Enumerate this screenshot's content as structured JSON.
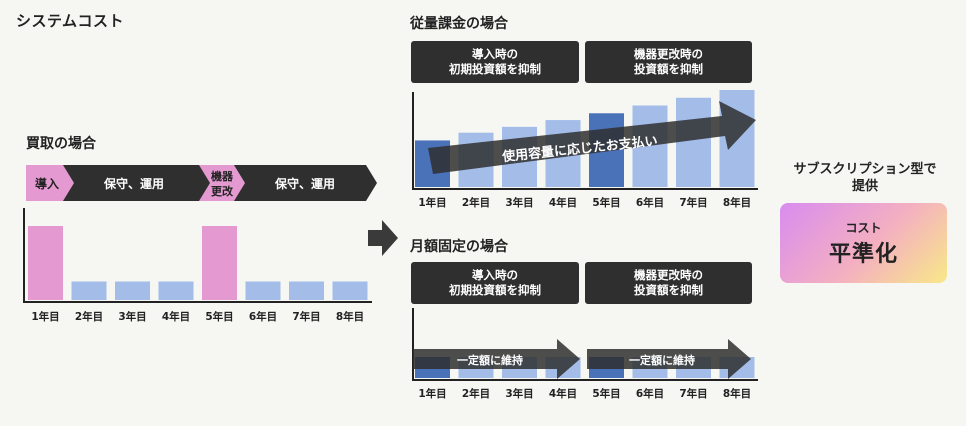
{
  "page_title": "システムコスト",
  "purchase": {
    "title": "買取の場合",
    "flow": [
      {
        "label": "導入",
        "type": "pink"
      },
      {
        "label": "保守、運用",
        "type": "dark"
      },
      {
        "label": "機器\n更改",
        "type": "pink"
      },
      {
        "label": "保守、運用",
        "type": "dark"
      }
    ]
  },
  "usage": {
    "title": "従量課金の場合",
    "box1": {
      "line1": "導入時の",
      "line2": "初期投資額を抑制"
    },
    "box2": {
      "line1": "機器更改時の",
      "line2": "投資額を抑制"
    },
    "arrow_label": "使用容量に応じたお支払い"
  },
  "fixed": {
    "title": "月額固定の場合",
    "box1": {
      "line1": "導入時の",
      "line2": "初期投資額を抑制"
    },
    "box2": {
      "line1": "機器更改時の",
      "line2": "投資額を抑制"
    },
    "arrow1_label": "一定額に維持",
    "arrow2_label": "一定額に維持"
  },
  "summary": {
    "title_line1": "サブスクリプション型で",
    "title_line2": "提供",
    "box_small": "コスト",
    "box_big": "平準化"
  },
  "colors": {
    "pink": "#e49ad0",
    "light_blue": "#a3bde8",
    "dark_blue": "#4a72b8",
    "dark": "#2f2f2f"
  },
  "chart_data": [
    {
      "type": "bar",
      "name": "purchase",
      "categories": [
        "1年目",
        "2年目",
        "3年目",
        "4年目",
        "5年目",
        "6年目",
        "7年目",
        "8年目"
      ],
      "values": [
        100,
        25,
        25,
        25,
        100,
        25,
        25,
        25
      ],
      "highlight": [
        true,
        false,
        false,
        false,
        true,
        false,
        false,
        false
      ],
      "ylim": [
        0,
        110
      ]
    },
    {
      "type": "bar",
      "name": "usage",
      "categories": [
        "1年目",
        "2年目",
        "3年目",
        "4年目",
        "5年目",
        "6年目",
        "7年目",
        "8年目"
      ],
      "values": [
        48,
        56,
        62,
        69,
        76,
        84,
        92,
        100
      ],
      "highlight": [
        true,
        false,
        false,
        false,
        true,
        false,
        false,
        false
      ],
      "ylim": [
        0,
        105
      ]
    },
    {
      "type": "bar",
      "name": "fixed",
      "categories": [
        "1年目",
        "2年目",
        "3年目",
        "4年目",
        "5年目",
        "6年目",
        "7年目",
        "8年目"
      ],
      "values": [
        50,
        50,
        50,
        50,
        50,
        50,
        50,
        50
      ],
      "highlight": [
        true,
        false,
        false,
        false,
        true,
        false,
        false,
        false
      ],
      "ylim": [
        0,
        100
      ]
    }
  ]
}
